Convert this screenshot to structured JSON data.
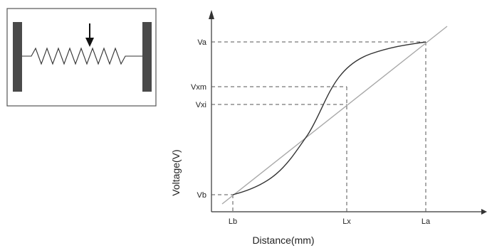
{
  "diagram": {
    "potentiometer": {
      "icon": "potentiometer-schematic",
      "arrow": "wiper-arrow-icon"
    },
    "graph": {
      "x_axis_title": "Distance(mm)",
      "y_axis_title": "Voltage(V)",
      "x_ticks": [
        "Lb",
        "Lx",
        "La"
      ],
      "y_ticks": [
        "Va",
        "Vxm",
        "Vxi",
        "Vb"
      ],
      "curves": [
        "nonlinear-output-curve",
        "ideal-linear-line"
      ]
    },
    "colors": {
      "line": "#333333",
      "ideal_line": "#a8a8a8",
      "end_plate": "#4a4a4a"
    }
  }
}
